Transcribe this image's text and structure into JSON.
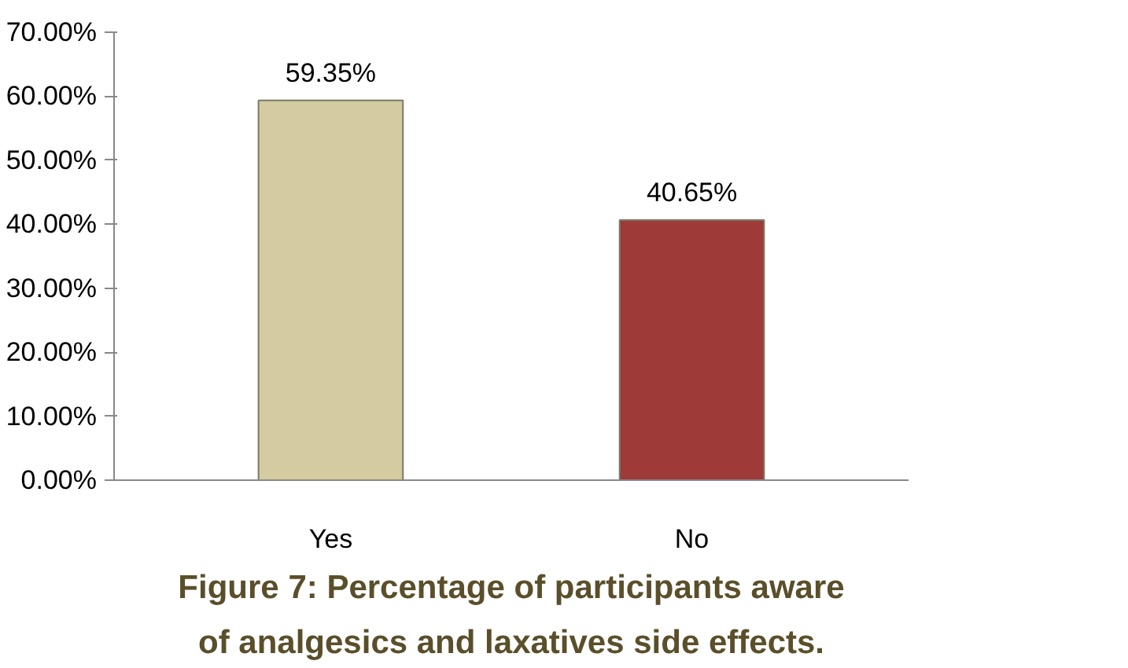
{
  "chart_data": {
    "type": "bar",
    "title": "Figure 7: Percentage of participants aware of analgesics and laxatives side effects.",
    "categories": [
      "Yes",
      "No"
    ],
    "values": [
      59.35,
      40.65
    ],
    "colors": [
      "#d4cca0",
      "#9e3a38"
    ],
    "value_labels": [
      "59.35%",
      "40.65%"
    ],
    "ylim": [
      0,
      70
    ],
    "yticks": [
      {
        "value": 0,
        "label": "0.00%"
      },
      {
        "value": 10,
        "label": "10.00%"
      },
      {
        "value": 20,
        "label": "20.00%"
      },
      {
        "value": 30,
        "label": "30.00%"
      },
      {
        "value": 40,
        "label": "40.00%"
      },
      {
        "value": 50,
        "label": "50.00%"
      },
      {
        "value": 60,
        "label": "60.00%"
      },
      {
        "value": 70,
        "label": "70.00%"
      }
    ],
    "grid": false
  }
}
